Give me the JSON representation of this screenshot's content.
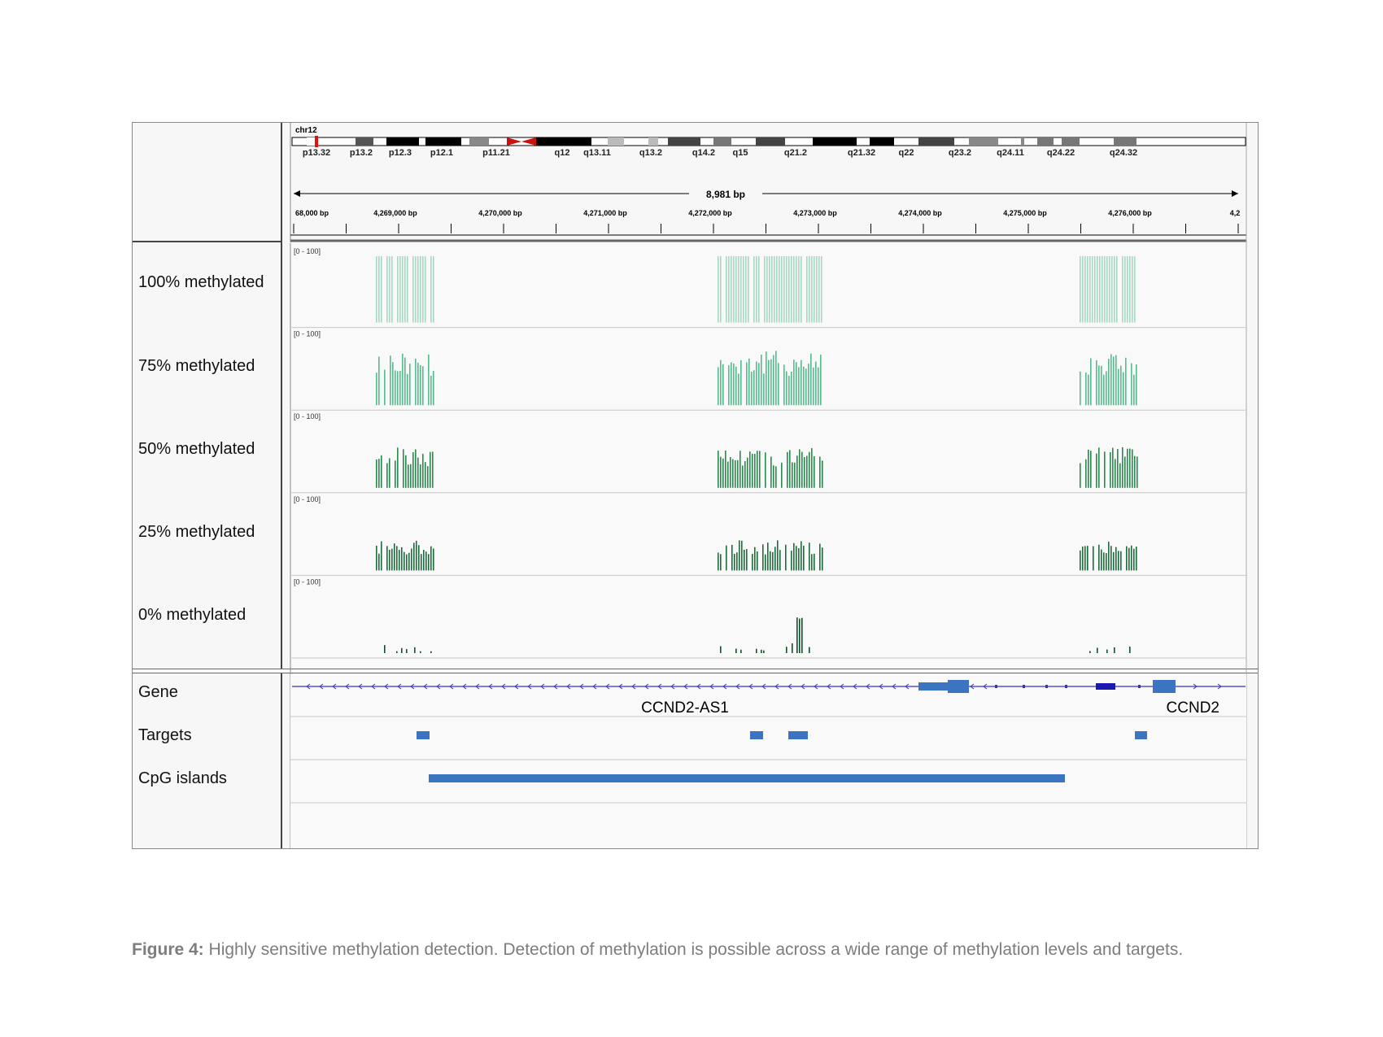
{
  "header": {
    "chromosome": "chr12",
    "bands": [
      "p13.32",
      "p13.2",
      "p12.3",
      "p12.1",
      "p11.21",
      "q12",
      "q13.11",
      "q13.2",
      "q14.2",
      "q15",
      "q21.2",
      "q21.32",
      "q22",
      "q23.2",
      "q24.11",
      "q24.22",
      "q24.32"
    ],
    "span_label": "8,981 bp",
    "ruler_ticks": [
      "68,000 bp",
      "4,269,000 bp",
      "4,270,000 bp",
      "4,271,000 bp",
      "4,272,000 bp",
      "4,273,000 bp",
      "4,274,000 bp",
      "4,275,000 bp",
      "4,276,000 bp",
      "4,2"
    ]
  },
  "tracks": [
    {
      "name": "100% methylated",
      "range": "[0 - 100]",
      "color": "#a6d8c2"
    },
    {
      "name": "75% methylated",
      "range": "[0 - 100]",
      "color": "#54bc8d"
    },
    {
      "name": "50% methylated",
      "range": "[0 - 100]",
      "color": "#2a8a4d"
    },
    {
      "name": "25% methylated",
      "range": "[0 - 100]",
      "color": "#1e6b3c"
    },
    {
      "name": "0% methylated",
      "range": "[0 - 100]",
      "color": "#12502a"
    }
  ],
  "annotation_tracks": {
    "gene_label": "Gene",
    "targets_label": "Targets",
    "cpg_label": "CpG islands",
    "gene_names": [
      "CCND2-AS1",
      "CCND2"
    ],
    "feature_color": "#3b74c1"
  },
  "caption": {
    "prefix": "Figure 4:",
    "text": " Highly sensitive methylation detection. Detection of methylation is possible across a wide range of methylation levels and targets."
  }
}
